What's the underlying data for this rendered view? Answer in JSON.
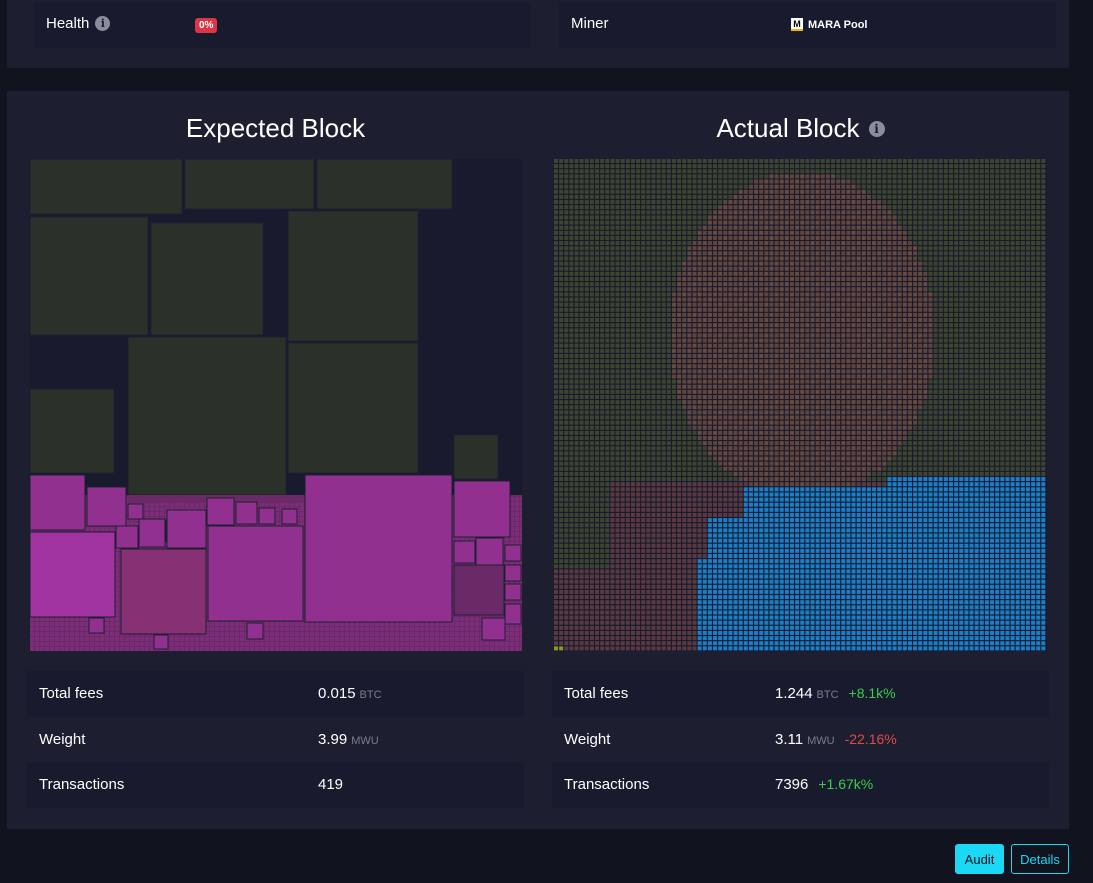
{
  "top": {
    "health_label": "Health",
    "health_value": "0%",
    "miner_label": "Miner",
    "miner_logo": "M",
    "miner_name": "MARA Pool"
  },
  "expected": {
    "title": "Expected Block",
    "stats": [
      {
        "label": "Total fees",
        "value": "0.015",
        "unit": "BTC",
        "delta": ""
      },
      {
        "label": "Weight",
        "value": "3.99",
        "unit": "MWU",
        "delta": ""
      },
      {
        "label": "Transactions",
        "value": "419",
        "unit": "",
        "delta": ""
      }
    ]
  },
  "actual": {
    "title": "Actual Block",
    "stats": [
      {
        "label": "Total fees",
        "value": "1.244",
        "unit": "BTC",
        "delta": "+8.1k%",
        "delta_dir": "pos"
      },
      {
        "label": "Weight",
        "value": "3.11",
        "unit": "MWU",
        "delta": "-22.16%",
        "delta_dir": "neg"
      },
      {
        "label": "Transactions",
        "value": "7396",
        "unit": "",
        "delta": "+1.67k%",
        "delta_dir": "pos"
      }
    ]
  },
  "buttons": {
    "audit": "Audit",
    "details": "Details"
  },
  "colors": {
    "accent": "#1bd8f4",
    "danger": "#dc3545",
    "positive": "#3bcc49",
    "negative": "#dc4b4b",
    "block_green": "#2a3128",
    "block_purple": "#92308f",
    "block_blue": "#1a7fc9"
  },
  "icons": [
    "info-icon",
    "miner-logo-icon"
  ]
}
